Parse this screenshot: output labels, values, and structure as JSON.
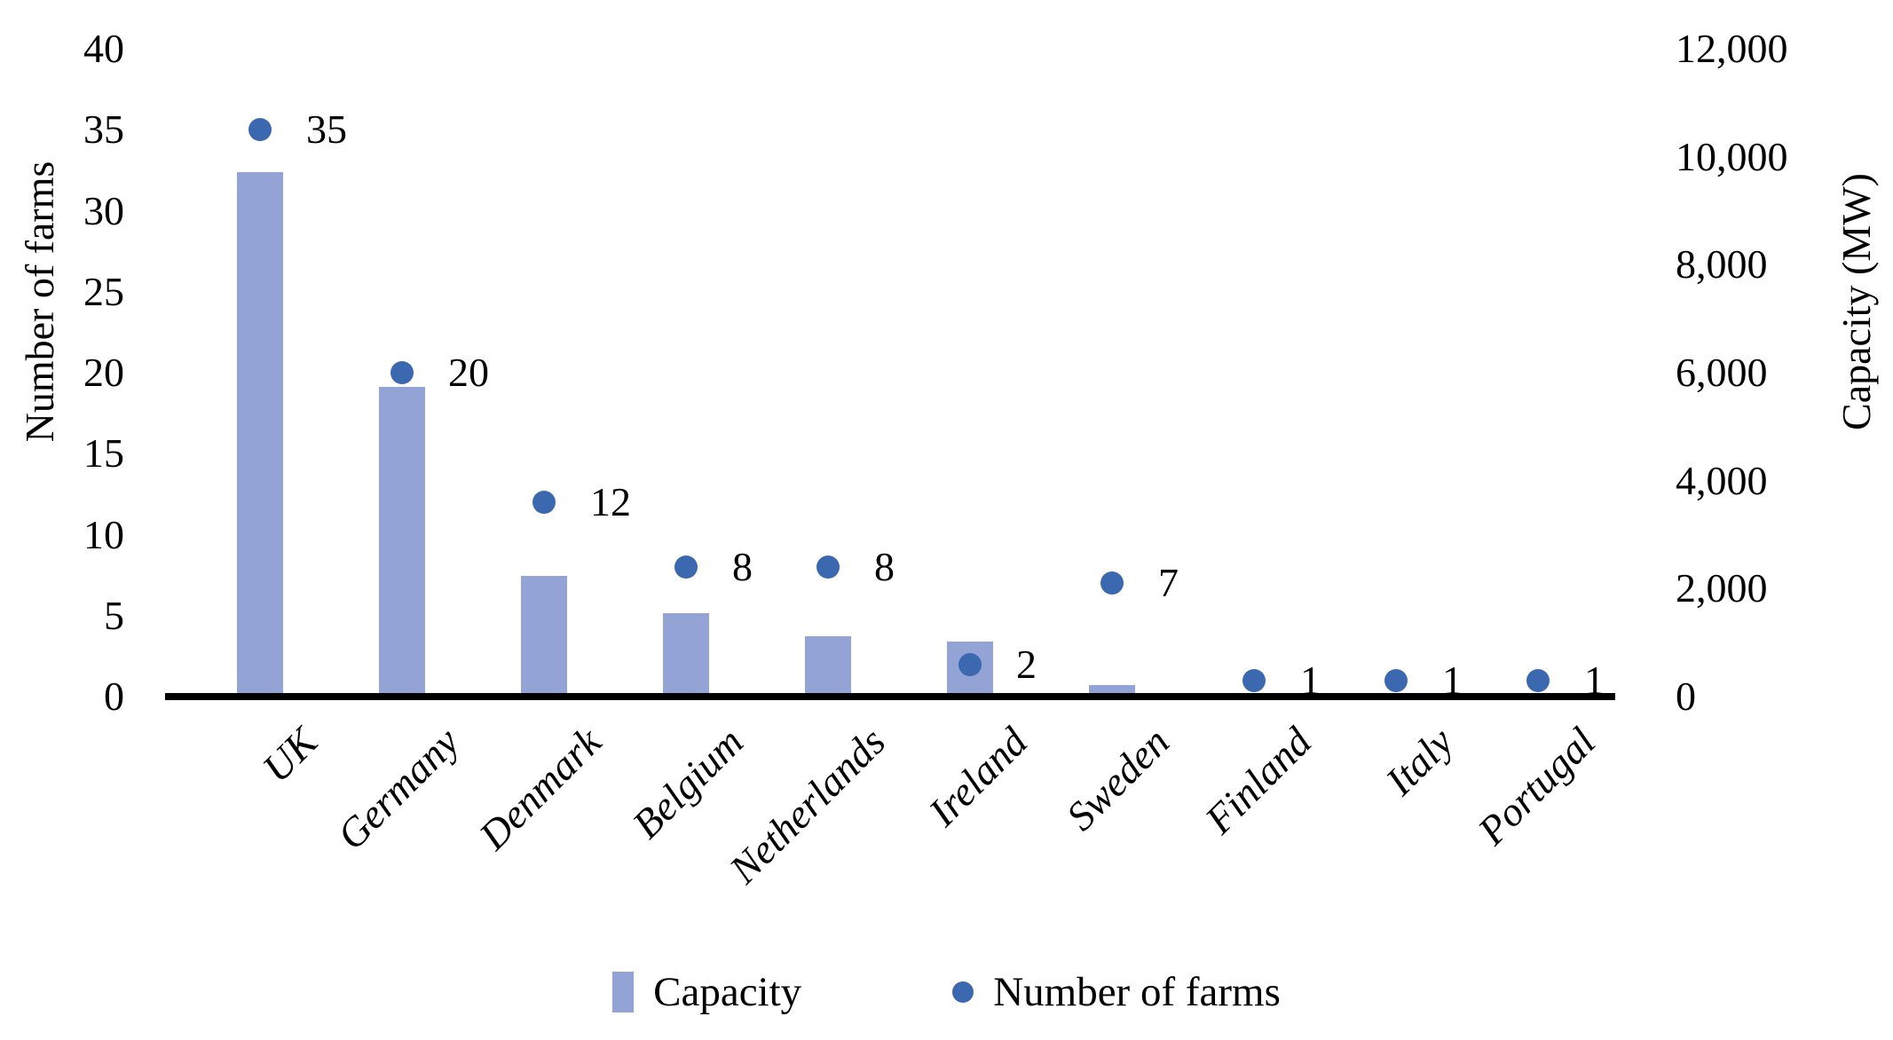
{
  "chart_data": {
    "type": "combo",
    "title": "",
    "categories": [
      "UK",
      "Germany",
      "Denmark",
      "Belgium",
      "Netherlands",
      "Ireland",
      "Sweden",
      "Finland",
      "Italy",
      "Portugal"
    ],
    "series": [
      {
        "name": "Capacity",
        "type": "bar",
        "axis": "right",
        "unit": "MW",
        "values": [
          9715,
          5735,
          2235,
          1545,
          1120,
          1020,
          215,
          0,
          0,
          0
        ]
      },
      {
        "name": "Number of farms",
        "type": "scatter",
        "axis": "left",
        "values": [
          35,
          20,
          12,
          8,
          8,
          2,
          7,
          1,
          1,
          1
        ],
        "data_labels": [
          "35",
          "20",
          "12",
          "8",
          "8",
          "2",
          "7",
          "1",
          "1",
          "1"
        ]
      }
    ],
    "left_axis": {
      "label": "Number of farms",
      "min": 0,
      "max": 40,
      "tick_step": 5,
      "ticks": [
        "0",
        "5",
        "10",
        "15",
        "20",
        "25",
        "30",
        "35",
        "40"
      ]
    },
    "right_axis": {
      "label": "Capacity (MW)",
      "min": 0,
      "max": 12000,
      "tick_step": 2000,
      "ticks": [
        "0",
        "2,000",
        "4,000",
        "6,000",
        "8,000",
        "10,000",
        "12,000"
      ]
    },
    "legend": [
      {
        "label": "Capacity",
        "marker": "bar"
      },
      {
        "label": "Number of farms",
        "marker": "dot"
      }
    ],
    "legend_position": "bottom-center",
    "grid": false,
    "colors": {
      "bar": "#93A3D6",
      "dot": "#3C68B0",
      "axis_line": "#000000",
      "text": "#000000"
    }
  }
}
